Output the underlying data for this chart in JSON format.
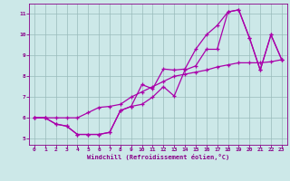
{
  "bg_color": "#cce8e8",
  "line_color": "#aa00aa",
  "grid_color": "#99bbbb",
  "xlabel": "Windchill (Refroidissement éolien,°C)",
  "xlabel_color": "#880088",
  "tick_color": "#880088",
  "xlim": [
    -0.5,
    23.5
  ],
  "ylim": [
    4.7,
    11.5
  ],
  "xticks": [
    0,
    1,
    2,
    3,
    4,
    5,
    6,
    7,
    8,
    9,
    10,
    11,
    12,
    13,
    14,
    15,
    16,
    17,
    18,
    19,
    20,
    21,
    22,
    23
  ],
  "yticks": [
    5,
    6,
    7,
    8,
    9,
    10,
    11
  ],
  "series": [
    [
      6.0,
      6.0,
      5.7,
      5.6,
      5.2,
      5.2,
      5.2,
      5.3,
      6.35,
      6.55,
      6.65,
      7.0,
      7.5,
      7.05,
      8.3,
      8.5,
      9.3,
      9.3,
      11.1,
      11.2,
      9.85,
      8.3,
      10.0,
      8.8
    ],
    [
      6.0,
      6.0,
      5.7,
      5.6,
      5.2,
      5.2,
      5.2,
      5.3,
      6.35,
      6.55,
      7.6,
      7.4,
      8.35,
      8.3,
      8.35,
      9.3,
      10.0,
      10.45,
      11.1,
      11.2,
      9.85,
      8.3,
      10.0,
      8.8
    ],
    [
      6.0,
      6.0,
      6.0,
      6.0,
      6.0,
      6.25,
      6.5,
      6.55,
      6.65,
      7.0,
      7.25,
      7.5,
      7.75,
      8.0,
      8.1,
      8.2,
      8.3,
      8.45,
      8.55,
      8.65,
      8.65,
      8.65,
      8.7,
      8.8
    ]
  ]
}
